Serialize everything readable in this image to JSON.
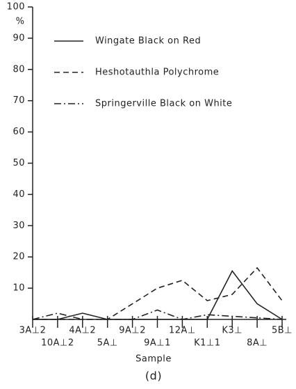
{
  "chart_data": {
    "type": "line",
    "title": "(d)",
    "xlabel": "Sample",
    "ylabel": "%",
    "categories": [
      "3A⊥2",
      "10A⊥2",
      "4A⊥2",
      "5A⊥",
      "9A⊥2",
      "9A⊥1",
      "12A⊥",
      "K1⊥1",
      "K3⊥",
      "8A⊥",
      "5B⊥"
    ],
    "series": [
      {
        "name": "Wingate Black on Red",
        "color": "#222222",
        "dash": "solid",
        "values": [
          0,
          0,
          2,
          0,
          0,
          0,
          0,
          0,
          15.5,
          5,
          0
        ]
      },
      {
        "name": "Heshotauthla Polychrome",
        "color": "#222222",
        "dash": "dashed",
        "values": [
          0,
          0,
          0,
          0,
          5,
          10,
          12.5,
          6,
          8,
          16.5,
          6
        ]
      },
      {
        "name": "Springerville Black on White",
        "color": "#222222",
        "dash": "dashdot",
        "values": [
          0,
          2,
          0,
          0,
          0,
          3,
          0,
          1.5,
          1,
          0.5,
          0
        ]
      }
    ],
    "ylim": [
      0,
      100
    ],
    "yticks": [
      10,
      20,
      30,
      40,
      50,
      60,
      70,
      80,
      90,
      100
    ],
    "grid": false
  }
}
